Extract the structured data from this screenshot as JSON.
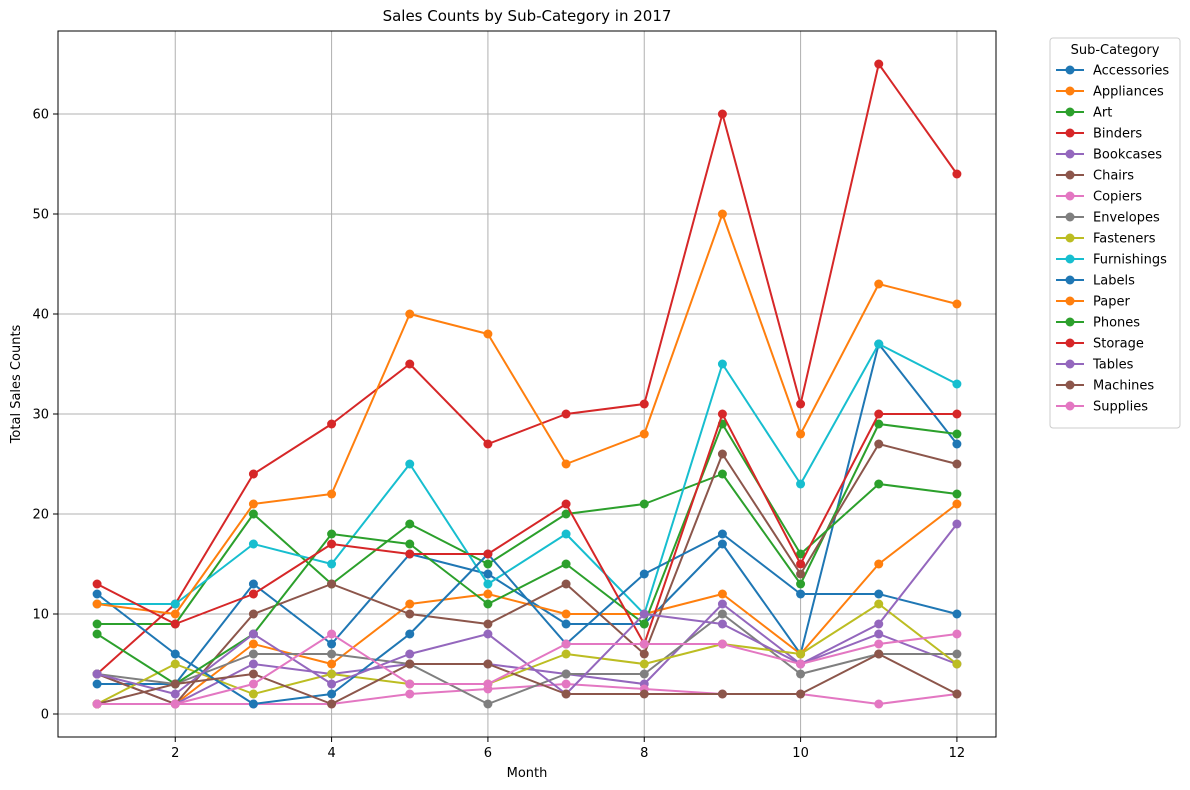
{
  "chart_data": {
    "type": "line",
    "title": "Sales Counts by Sub-Category in 2017",
    "xlabel": "Month",
    "ylabel": "Total Sales Counts",
    "xlim": [
      0.5,
      12.5
    ],
    "ylim": [
      -2.3,
      68.3
    ],
    "xticks": [
      2,
      4,
      6,
      8,
      10,
      12
    ],
    "yticks": [
      0,
      10,
      20,
      30,
      40,
      50,
      60
    ],
    "grid": true,
    "legend": {
      "title": "Sub-Category",
      "placement": "outside-right"
    },
    "x": [
      1,
      2,
      3,
      4,
      5,
      6,
      7,
      8,
      9,
      10,
      11,
      12
    ],
    "series": [
      {
        "name": "Accessories",
        "color": "#1f77b4",
        "values": [
          3,
          3,
          13,
          7,
          16,
          14,
          9,
          9,
          17,
          6,
          37,
          27
        ]
      },
      {
        "name": "Appliances",
        "color": "#ff7f0e",
        "values": [
          1,
          1,
          7,
          5,
          11,
          12,
          10,
          10,
          12,
          6,
          15,
          21
        ]
      },
      {
        "name": "Art",
        "color": "#2ca02c",
        "values": [
          9,
          9,
          20,
          13,
          19,
          15,
          20,
          21,
          24,
          13,
          29,
          28
        ]
      },
      {
        "name": "Binders",
        "color": "#d62728",
        "values": [
          4,
          11,
          24,
          29,
          35,
          27,
          30,
          31,
          60,
          31,
          65,
          54
        ]
      },
      {
        "name": "Bookcases",
        "color": "#9467bd",
        "values": [
          4,
          1,
          5,
          4,
          5,
          5,
          4,
          3,
          11,
          5,
          8,
          5
        ]
      },
      {
        "name": "Chairs",
        "color": "#8c564b",
        "values": [
          4,
          1,
          10,
          13,
          10,
          9,
          13,
          6,
          26,
          14,
          27,
          25
        ]
      },
      {
        "name": "Copiers",
        "color": "#e377c2",
        "values": [
          1,
          1,
          1,
          1,
          2,
          2.5,
          3,
          2.5,
          2,
          2,
          1,
          2
        ]
      },
      {
        "name": "Envelopes",
        "color": "#7f7f7f",
        "values": [
          4,
          3,
          6,
          6,
          5,
          1,
          4,
          4,
          10,
          4,
          6,
          6
        ]
      },
      {
        "name": "Fasteners",
        "color": "#bcbd22",
        "values": [
          1,
          5,
          2,
          4,
          3,
          3,
          6,
          5,
          7,
          6,
          11,
          5
        ]
      },
      {
        "name": "Furnishings",
        "color": "#17becf",
        "values": [
          11,
          11,
          17,
          15,
          25,
          13,
          18,
          10,
          35,
          23,
          37,
          33
        ]
      },
      {
        "name": "Labels",
        "color": "#1f77b4",
        "values": [
          12,
          6,
          1,
          2,
          8,
          16,
          7,
          14,
          18,
          12,
          12,
          10
        ]
      },
      {
        "name": "Paper",
        "color": "#ff7f0e",
        "values": [
          11,
          10,
          21,
          22,
          40,
          38,
          25,
          28,
          50,
          28,
          43,
          41
        ]
      },
      {
        "name": "Phones",
        "color": "#2ca02c",
        "values": [
          8,
          3,
          8,
          18,
          17,
          11,
          15,
          9,
          29,
          16,
          23,
          22
        ]
      },
      {
        "name": "Storage",
        "color": "#d62728",
        "values": [
          13,
          9,
          12,
          17,
          16,
          16,
          21,
          7,
          30,
          15,
          30,
          30
        ]
      },
      {
        "name": "Tables",
        "color": "#9467bd",
        "values": [
          4,
          2,
          8,
          3,
          6,
          8,
          2,
          10,
          9,
          5,
          9,
          19
        ]
      },
      {
        "name": "Machines",
        "color": "#8c564b",
        "values": [
          1,
          3,
          4,
          1,
          5,
          5,
          2,
          2,
          2,
          2,
          6,
          2
        ]
      },
      {
        "name": "Supplies",
        "color": "#e377c2",
        "values": [
          1,
          1,
          3,
          8,
          3,
          3,
          7,
          7,
          7,
          5,
          7,
          8
        ]
      }
    ]
  }
}
